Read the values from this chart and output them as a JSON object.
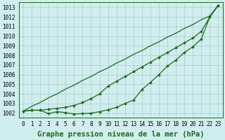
{
  "title": "Graphe pression niveau de la mer (hPa)",
  "x": [
    0,
    1,
    2,
    3,
    4,
    5,
    6,
    7,
    8,
    9,
    10,
    11,
    12,
    13,
    14,
    15,
    16,
    17,
    18,
    19,
    20,
    21,
    22,
    23
  ],
  "line_straight": [
    1002.2,
    1002.7,
    1003.1,
    1003.6,
    1004.0,
    1004.5,
    1004.9,
    1005.4,
    1005.8,
    1006.3,
    1006.7,
    1007.2,
    1007.6,
    1008.1,
    1008.5,
    1009.0,
    1009.4,
    1009.9,
    1010.3,
    1010.8,
    1011.2,
    1011.7,
    1012.1,
    1013.2
  ],
  "line_mid": [
    1002.2,
    1002.3,
    1002.3,
    1002.4,
    1002.5,
    1002.6,
    1002.8,
    1003.1,
    1003.5,
    1004.0,
    1004.8,
    1005.3,
    1005.8,
    1006.3,
    1006.8,
    1007.3,
    1007.8,
    1008.3,
    1008.8,
    1009.3,
    1009.8,
    1010.5,
    1012.0,
    1013.2
  ],
  "line_low": [
    1002.2,
    1002.3,
    1002.3,
    1001.95,
    1002.15,
    1002.05,
    1001.9,
    1001.95,
    1002.0,
    1002.15,
    1002.35,
    1002.6,
    1003.0,
    1003.35,
    1004.45,
    1005.2,
    1006.0,
    1006.9,
    1007.5,
    1008.3,
    1008.9,
    1009.7,
    1012.0,
    1013.2
  ],
  "line_color": "#1a6b1a",
  "bg_color": "#d0eeee",
  "grid_color": "#aacccc",
  "ylim_min": 1001.5,
  "ylim_max": 1013.5,
  "yticks": [
    1002,
    1003,
    1004,
    1005,
    1006,
    1007,
    1008,
    1009,
    1010,
    1011,
    1012,
    1013
  ],
  "xticks": [
    0,
    1,
    2,
    3,
    4,
    5,
    6,
    7,
    8,
    9,
    10,
    11,
    12,
    13,
    14,
    15,
    16,
    17,
    18,
    19,
    20,
    21,
    22,
    23
  ],
  "title_fontsize": 7.5,
  "tick_fontsize": 5.5,
  "line_width": 0.9,
  "marker": "D",
  "marker_size": 2.0
}
